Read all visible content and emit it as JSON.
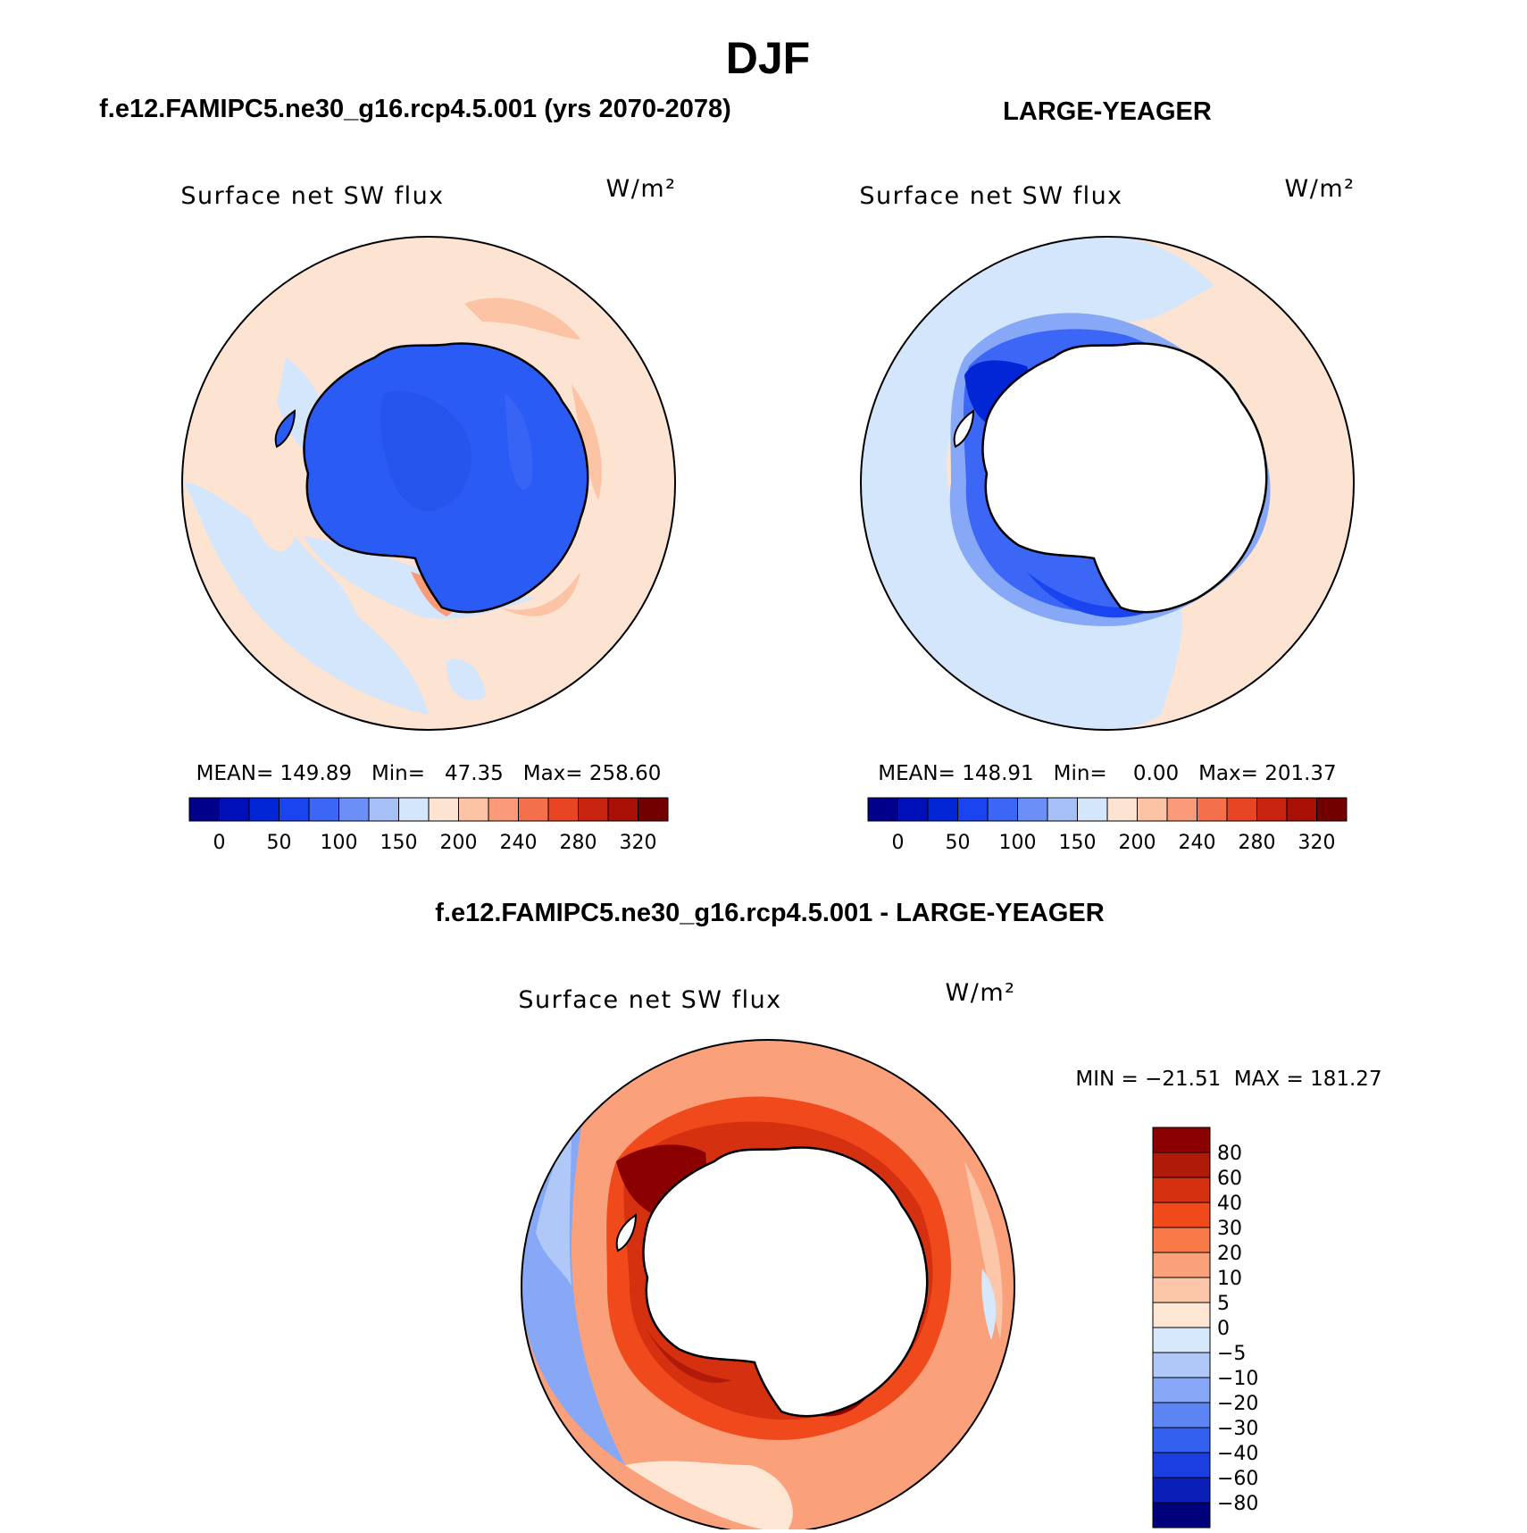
{
  "page_title": "DJF",
  "colors": {
    "ocean_pos_light": "#fde3d2",
    "ice_blue": "#2a5cf5",
    "land_white": "#ffffff"
  },
  "chart_data": [
    {
      "type": "heatmap",
      "panel": "top-left",
      "header": "f.e12.FAMIPC5.ne30_g16.rcp4.5.001 (yrs 2070-2078)",
      "title": "Surface net SW flux",
      "units": "W/m²",
      "stats_text": "MEAN= 149.89   Min=   47.35   Max= 258.60",
      "stats": {
        "mean": 149.89,
        "min": 47.35,
        "max": 258.6
      },
      "colorbar": {
        "orientation": "horizontal",
        "tick_labels": [
          "0",
          "50",
          "100",
          "150",
          "200",
          "240",
          "280",
          "320"
        ],
        "colors": [
          "#00008b",
          "#0010b8",
          "#0026d6",
          "#1a44f0",
          "#3c66f5",
          "#6b8ff7",
          "#a6c0f7",
          "#d4e6fb",
          "#fde3d2",
          "#fcc3a5",
          "#fa9a78",
          "#f4704d",
          "#e84525",
          "#c82410",
          "#a81006",
          "#730000"
        ]
      }
    },
    {
      "type": "heatmap",
      "panel": "top-right",
      "header": "LARGE-YEAGER",
      "title": "Surface net SW flux",
      "units": "W/m²",
      "stats_text": "MEAN= 148.91   Min=    0.00   Max= 201.37",
      "stats": {
        "mean": 148.91,
        "min": 0.0,
        "max": 201.37
      },
      "colorbar": {
        "orientation": "horizontal",
        "tick_labels": [
          "0",
          "50",
          "100",
          "150",
          "200",
          "240",
          "280",
          "320"
        ],
        "colors": [
          "#00008b",
          "#0010b8",
          "#0026d6",
          "#1a44f0",
          "#3c66f5",
          "#6b8ff7",
          "#a6c0f7",
          "#d4e6fb",
          "#fde3d2",
          "#fcc3a5",
          "#fa9a78",
          "#f4704d",
          "#e84525",
          "#c82410",
          "#a81006",
          "#730000"
        ]
      }
    },
    {
      "type": "heatmap",
      "panel": "bottom",
      "header": "f.e12.FAMIPC5.ne30_g16.rcp4.5.001 - LARGE-YEAGER",
      "title": "Surface net SW flux",
      "units": "W/m²",
      "stats_text": "MIN = −21.51  MAX = 181.27",
      "stats": {
        "min": -21.51,
        "max": 181.27
      },
      "colorbar": {
        "orientation": "vertical",
        "tick_labels": [
          "80",
          "60",
          "40",
          "30",
          "20",
          "10",
          "5",
          "0",
          "−5",
          "−10",
          "−20",
          "−30",
          "−40",
          "−60",
          "−80"
        ],
        "colors": [
          "#8b0000",
          "#b01a08",
          "#d53010",
          "#f04a1c",
          "#f77a48",
          "#faa07a",
          "#fcc7a8",
          "#fde6d4",
          "#d8e8fb",
          "#b0c8f8",
          "#86a8f6",
          "#5c84f3",
          "#3460ef",
          "#1a3ee0",
          "#0a1eb8",
          "#00007a"
        ]
      }
    }
  ]
}
